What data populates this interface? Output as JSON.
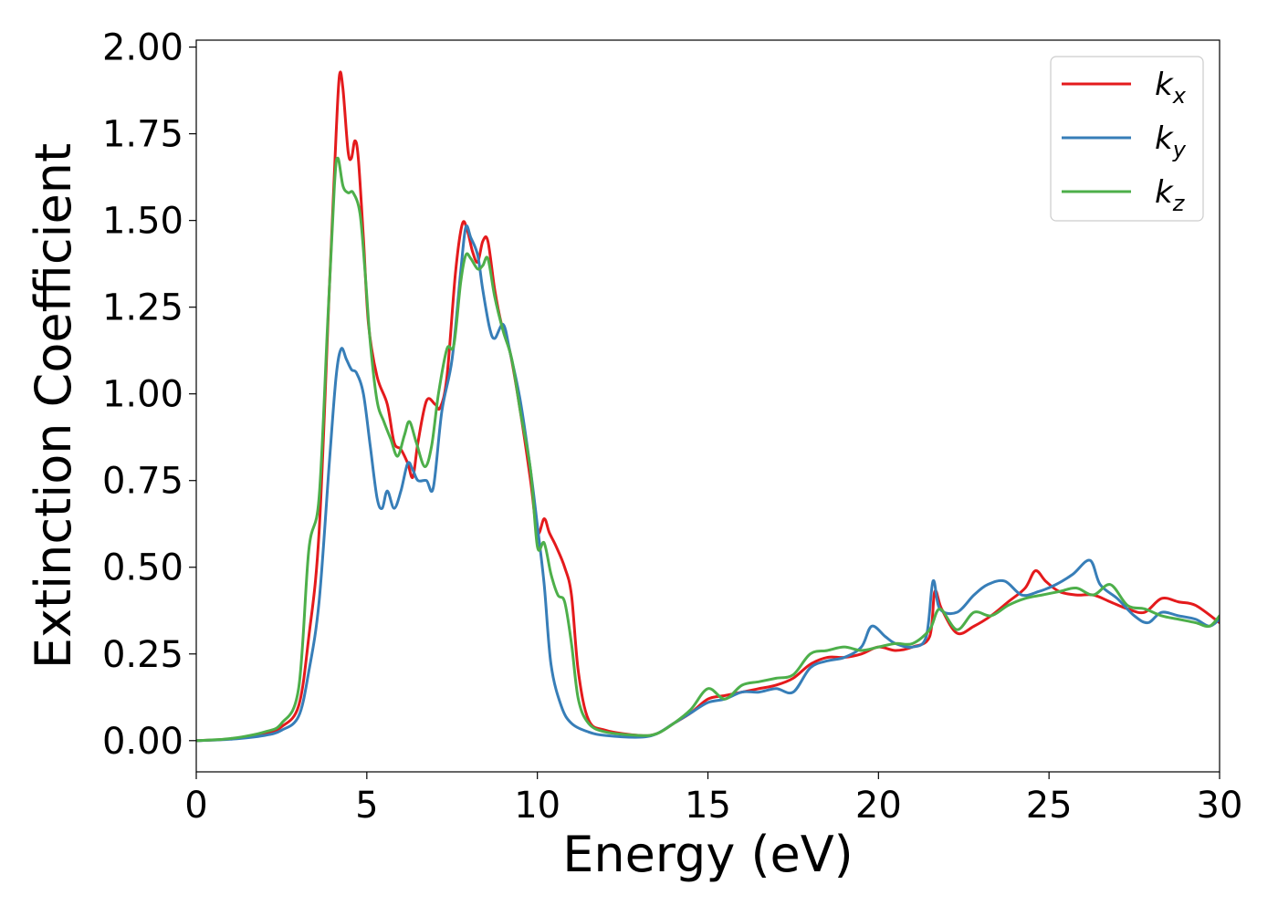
{
  "chart_data": {
    "type": "line",
    "title": "",
    "xlabel": "Energy (eV)",
    "ylabel": "Extinction Coefficient",
    "xlim": [
      0,
      30
    ],
    "ylim": [
      -0.09,
      2.02
    ],
    "xticks": [
      0,
      5,
      10,
      15,
      20,
      25,
      30
    ],
    "xtick_labels": [
      "0",
      "5",
      "10",
      "15",
      "20",
      "25",
      "30"
    ],
    "yticks": [
      0,
      0.25,
      0.5,
      0.75,
      1.0,
      1.25,
      1.5,
      1.75,
      2.0
    ],
    "ytick_labels": [
      "0.00",
      "0.25",
      "0.50",
      "0.75",
      "1.00",
      "1.25",
      "1.50",
      "1.75",
      "2.00"
    ],
    "grid": false,
    "legend_position": "top-right",
    "series": [
      {
        "name": "k_x",
        "label_base": "k",
        "label_sub": "x",
        "color": "#e41a1c",
        "points": [
          [
            0,
            0
          ],
          [
            1,
            0.005
          ],
          [
            2,
            0.02
          ],
          [
            2.5,
            0.04
          ],
          [
            3,
            0.1
          ],
          [
            3.3,
            0.3
          ],
          [
            3.6,
            0.6
          ],
          [
            3.9,
            1.3
          ],
          [
            4.1,
            1.75
          ],
          [
            4.2,
            1.92
          ],
          [
            4.3,
            1.88
          ],
          [
            4.45,
            1.7
          ],
          [
            4.55,
            1.68
          ],
          [
            4.65,
            1.73
          ],
          [
            4.75,
            1.68
          ],
          [
            4.9,
            1.45
          ],
          [
            5.05,
            1.2
          ],
          [
            5.3,
            1.05
          ],
          [
            5.6,
            0.97
          ],
          [
            5.8,
            0.86
          ],
          [
            6,
            0.84
          ],
          [
            6.2,
            0.8
          ],
          [
            6.35,
            0.76
          ],
          [
            6.5,
            0.86
          ],
          [
            6.75,
            0.98
          ],
          [
            7,
            0.97
          ],
          [
            7.15,
            0.96
          ],
          [
            7.35,
            1.05
          ],
          [
            7.6,
            1.35
          ],
          [
            7.8,
            1.49
          ],
          [
            7.95,
            1.47
          ],
          [
            8.1,
            1.41
          ],
          [
            8.25,
            1.38
          ],
          [
            8.4,
            1.44
          ],
          [
            8.55,
            1.44
          ],
          [
            8.75,
            1.3
          ],
          [
            8.95,
            1.2
          ],
          [
            9.2,
            1.12
          ],
          [
            9.5,
            0.95
          ],
          [
            9.8,
            0.75
          ],
          [
            10,
            0.6
          ],
          [
            10.2,
            0.64
          ],
          [
            10.35,
            0.6
          ],
          [
            10.55,
            0.56
          ],
          [
            10.8,
            0.5
          ],
          [
            11,
            0.42
          ],
          [
            11.2,
            0.2
          ],
          [
            11.5,
            0.06
          ],
          [
            12,
            0.03
          ],
          [
            13,
            0.015
          ],
          [
            13.5,
            0.02
          ],
          [
            14,
            0.05
          ],
          [
            14.5,
            0.08
          ],
          [
            15,
            0.12
          ],
          [
            15.5,
            0.13
          ],
          [
            16,
            0.14
          ],
          [
            16.5,
            0.15
          ],
          [
            17,
            0.16
          ],
          [
            17.5,
            0.18
          ],
          [
            18,
            0.22
          ],
          [
            18.5,
            0.24
          ],
          [
            19,
            0.24
          ],
          [
            19.5,
            0.25
          ],
          [
            20,
            0.27
          ],
          [
            20.5,
            0.26
          ],
          [
            21,
            0.27
          ],
          [
            21.5,
            0.3
          ],
          [
            21.65,
            0.43
          ],
          [
            21.85,
            0.38
          ],
          [
            22.3,
            0.31
          ],
          [
            22.8,
            0.33
          ],
          [
            23.3,
            0.36
          ],
          [
            23.8,
            0.4
          ],
          [
            24.3,
            0.44
          ],
          [
            24.6,
            0.49
          ],
          [
            24.9,
            0.46
          ],
          [
            25.3,
            0.43
          ],
          [
            25.8,
            0.42
          ],
          [
            26.3,
            0.42
          ],
          [
            26.8,
            0.4
          ],
          [
            27.3,
            0.38
          ],
          [
            27.8,
            0.37
          ],
          [
            28.3,
            0.41
          ],
          [
            28.8,
            0.4
          ],
          [
            29.3,
            0.39
          ],
          [
            30,
            0.34
          ]
        ]
      },
      {
        "name": "k_y",
        "label_base": "k",
        "label_sub": "y",
        "color": "#377eb8",
        "points": [
          [
            0,
            0
          ],
          [
            1,
            0.004
          ],
          [
            2,
            0.015
          ],
          [
            2.5,
            0.03
          ],
          [
            3,
            0.07
          ],
          [
            3.3,
            0.2
          ],
          [
            3.6,
            0.4
          ],
          [
            3.9,
            0.8
          ],
          [
            4.1,
            1.05
          ],
          [
            4.25,
            1.13
          ],
          [
            4.4,
            1.1
          ],
          [
            4.55,
            1.07
          ],
          [
            4.7,
            1.06
          ],
          [
            4.9,
            1.0
          ],
          [
            5.1,
            0.85
          ],
          [
            5.3,
            0.7
          ],
          [
            5.45,
            0.67
          ],
          [
            5.6,
            0.72
          ],
          [
            5.8,
            0.67
          ],
          [
            6,
            0.72
          ],
          [
            6.2,
            0.8
          ],
          [
            6.35,
            0.78
          ],
          [
            6.5,
            0.75
          ],
          [
            6.75,
            0.75
          ],
          [
            6.95,
            0.73
          ],
          [
            7.2,
            0.95
          ],
          [
            7.5,
            1.1
          ],
          [
            7.75,
            1.35
          ],
          [
            7.9,
            1.48
          ],
          [
            8.05,
            1.45
          ],
          [
            8.25,
            1.4
          ],
          [
            8.4,
            1.3
          ],
          [
            8.6,
            1.19
          ],
          [
            8.75,
            1.16
          ],
          [
            9,
            1.2
          ],
          [
            9.2,
            1.12
          ],
          [
            9.5,
            0.98
          ],
          [
            9.8,
            0.78
          ],
          [
            10,
            0.62
          ],
          [
            10.2,
            0.45
          ],
          [
            10.4,
            0.22
          ],
          [
            10.7,
            0.1
          ],
          [
            11,
            0.05
          ],
          [
            11.5,
            0.025
          ],
          [
            12,
            0.015
          ],
          [
            13,
            0.01
          ],
          [
            13.5,
            0.02
          ],
          [
            14,
            0.05
          ],
          [
            14.5,
            0.08
          ],
          [
            15,
            0.11
          ],
          [
            15.5,
            0.12
          ],
          [
            16,
            0.14
          ],
          [
            16.5,
            0.14
          ],
          [
            17,
            0.15
          ],
          [
            17.5,
            0.14
          ],
          [
            18,
            0.21
          ],
          [
            18.5,
            0.23
          ],
          [
            19,
            0.24
          ],
          [
            19.5,
            0.27
          ],
          [
            19.8,
            0.33
          ],
          [
            20.2,
            0.3
          ],
          [
            20.5,
            0.28
          ],
          [
            21,
            0.27
          ],
          [
            21.4,
            0.3
          ],
          [
            21.6,
            0.46
          ],
          [
            21.8,
            0.38
          ],
          [
            22.3,
            0.37
          ],
          [
            22.8,
            0.42
          ],
          [
            23.2,
            0.45
          ],
          [
            23.7,
            0.46
          ],
          [
            24.2,
            0.42
          ],
          [
            24.7,
            0.43
          ],
          [
            25.2,
            0.45
          ],
          [
            25.7,
            0.48
          ],
          [
            26.2,
            0.52
          ],
          [
            26.5,
            0.45
          ],
          [
            27,
            0.41
          ],
          [
            27.5,
            0.36
          ],
          [
            27.9,
            0.34
          ],
          [
            28.3,
            0.37
          ],
          [
            28.8,
            0.36
          ],
          [
            29.3,
            0.35
          ],
          [
            29.7,
            0.33
          ],
          [
            30,
            0.35
          ]
        ]
      },
      {
        "name": "k_z",
        "label_base": "k",
        "label_sub": "z",
        "color": "#4daf4a",
        "points": [
          [
            0,
            0
          ],
          [
            1,
            0.006
          ],
          [
            2,
            0.025
          ],
          [
            2.5,
            0.05
          ],
          [
            3,
            0.15
          ],
          [
            3.3,
            0.55
          ],
          [
            3.6,
            0.7
          ],
          [
            3.85,
            1.2
          ],
          [
            4.05,
            1.6
          ],
          [
            4.15,
            1.68
          ],
          [
            4.3,
            1.6
          ],
          [
            4.45,
            1.58
          ],
          [
            4.6,
            1.58
          ],
          [
            4.8,
            1.52
          ],
          [
            4.95,
            1.35
          ],
          [
            5.1,
            1.15
          ],
          [
            5.3,
            0.98
          ],
          [
            5.5,
            0.92
          ],
          [
            5.7,
            0.87
          ],
          [
            5.9,
            0.82
          ],
          [
            6.1,
            0.88
          ],
          [
            6.25,
            0.92
          ],
          [
            6.45,
            0.86
          ],
          [
            6.7,
            0.79
          ],
          [
            6.9,
            0.85
          ],
          [
            7.1,
            1.0
          ],
          [
            7.35,
            1.13
          ],
          [
            7.55,
            1.14
          ],
          [
            7.75,
            1.32
          ],
          [
            7.9,
            1.4
          ],
          [
            8.05,
            1.39
          ],
          [
            8.25,
            1.36
          ],
          [
            8.4,
            1.37
          ],
          [
            8.55,
            1.39
          ],
          [
            8.75,
            1.28
          ],
          [
            9,
            1.18
          ],
          [
            9.25,
            1.1
          ],
          [
            9.5,
            0.95
          ],
          [
            9.8,
            0.78
          ],
          [
            10,
            0.56
          ],
          [
            10.2,
            0.57
          ],
          [
            10.4,
            0.48
          ],
          [
            10.6,
            0.42
          ],
          [
            10.8,
            0.4
          ],
          [
            11,
            0.28
          ],
          [
            11.2,
            0.12
          ],
          [
            11.5,
            0.05
          ],
          [
            12,
            0.025
          ],
          [
            13,
            0.015
          ],
          [
            13.5,
            0.02
          ],
          [
            14,
            0.05
          ],
          [
            14.5,
            0.09
          ],
          [
            15,
            0.15
          ],
          [
            15.5,
            0.12
          ],
          [
            16,
            0.16
          ],
          [
            16.5,
            0.17
          ],
          [
            17,
            0.18
          ],
          [
            17.5,
            0.19
          ],
          [
            18,
            0.25
          ],
          [
            18.5,
            0.26
          ],
          [
            19,
            0.27
          ],
          [
            19.5,
            0.26
          ],
          [
            20,
            0.27
          ],
          [
            20.5,
            0.28
          ],
          [
            21,
            0.28
          ],
          [
            21.5,
            0.32
          ],
          [
            21.8,
            0.38
          ],
          [
            22.3,
            0.32
          ],
          [
            22.8,
            0.37
          ],
          [
            23.3,
            0.36
          ],
          [
            23.8,
            0.39
          ],
          [
            24.3,
            0.41
          ],
          [
            24.8,
            0.42
          ],
          [
            25.3,
            0.43
          ],
          [
            25.8,
            0.44
          ],
          [
            26.3,
            0.42
          ],
          [
            26.8,
            0.45
          ],
          [
            27.3,
            0.39
          ],
          [
            27.8,
            0.38
          ],
          [
            28.3,
            0.36
          ],
          [
            28.8,
            0.35
          ],
          [
            29.3,
            0.34
          ],
          [
            29.7,
            0.33
          ],
          [
            30,
            0.36
          ]
        ]
      }
    ]
  }
}
